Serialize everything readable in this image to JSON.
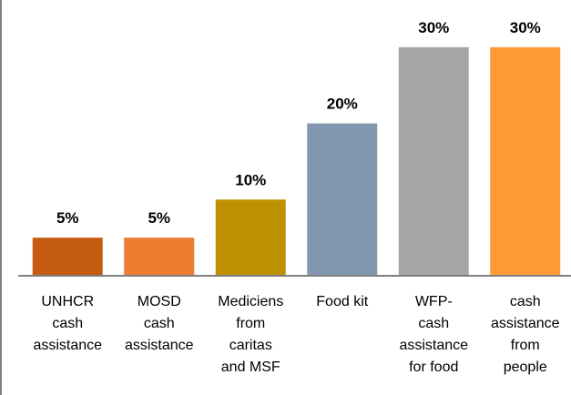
{
  "chart_data": {
    "type": "bar",
    "categories": [
      "UNHCR\ncash\nassistance",
      "MOSD\ncash\nassistance",
      "Mediciens\nfrom\ncaritas\nand MSF",
      "Food kit",
      "WFP-\ncash\nassistance\nfor food",
      "cash\nassistance\nfrom\npeople"
    ],
    "values": [
      5,
      5,
      10,
      20,
      30,
      30
    ],
    "value_labels": [
      "5%",
      "5%",
      "10%",
      "20%",
      "30%",
      "30%"
    ],
    "colors": [
      "#c55a11",
      "#ed7d31",
      "#bf9000",
      "#8497b0",
      "#a5a5a5",
      "#ff9933"
    ],
    "ylim": [
      0,
      35
    ]
  }
}
